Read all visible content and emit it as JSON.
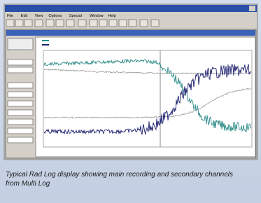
{
  "menu": [
    "File",
    "Edit",
    "View",
    "Options",
    "Special",
    "Window",
    "Help"
  ],
  "caption": "Typical Rad Log display showing main recording and secondary channels from Multi Log"
}
